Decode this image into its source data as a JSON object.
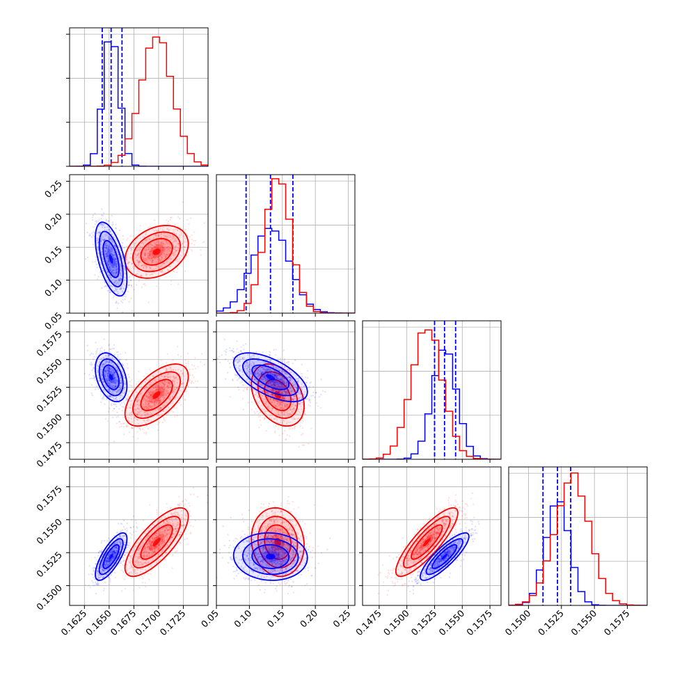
{
  "chart_data": {
    "type": "corner",
    "colors": {
      "series_a": "#0000ff",
      "series_b": "#ff0000",
      "grid": "#b0b0b0"
    },
    "parameters": [
      {
        "range": [
          0.161,
          0.175
        ],
        "ticks": [
          "0.1625",
          "0.1650",
          "0.1675",
          "0.1700",
          "0.1725"
        ],
        "tick_values": [
          0.1625,
          0.165,
          0.1675,
          0.17,
          0.1725
        ]
      },
      {
        "range": [
          0.05,
          0.26
        ],
        "ticks": [
          "0.05",
          "0.10",
          "0.15",
          "0.20",
          "0.25"
        ],
        "tick_values": [
          0.05,
          0.1,
          0.15,
          0.2,
          0.25
        ]
      },
      {
        "range": [
          0.146,
          0.1585
        ],
        "ticks": [
          "0.1475",
          "0.1500",
          "0.1525",
          "0.1550",
          "0.1575"
        ],
        "tick_values": [
          0.1475,
          0.15,
          0.1525,
          0.155,
          0.1575
        ]
      },
      {
        "range": [
          0.1485,
          0.159
        ],
        "ticks": [
          "0.1500",
          "0.1525",
          "0.1550",
          "0.1575"
        ],
        "tick_values": [
          0.15,
          0.1525,
          0.155,
          0.1575
        ]
      }
    ],
    "series": [
      {
        "color": "#0000ff",
        "means": [
          0.1652,
          0.132,
          0.1534,
          0.1522
        ],
        "sds": [
          0.0008,
          0.028,
          0.0011,
          0.0009
        ],
        "quantiles": [
          [
            0.1643,
            0.1652,
            0.1663
          ],
          [
            0.095,
            0.132,
            0.166
          ],
          [
            0.1525,
            0.1534,
            0.1544
          ],
          [
            0.1511,
            0.1522,
            0.1532
          ]
        ],
        "rho": [
          [
            1,
            -0.55,
            -0.35,
            0.75
          ],
          [
            -0.55,
            1,
            -0.6,
            -0.05
          ],
          [
            -0.35,
            -0.6,
            1,
            0.85
          ],
          [
            0.75,
            -0.05,
            0.85,
            1
          ]
        ],
        "hist_peak": [
          0.98,
          0.62,
          0.8,
          0.75
        ]
      },
      {
        "color": "#ff0000",
        "means": [
          0.1698,
          0.143,
          0.1518,
          0.1533
        ],
        "sds": [
          0.0016,
          0.02,
          0.0014,
          0.0013
        ],
        "quantiles": [],
        "rho": [
          [
            1,
            0.3,
            0.6,
            0.75
          ],
          [
            0.3,
            1,
            -0.35,
            -0.1
          ],
          [
            0.6,
            -0.35,
            1,
            0.85
          ],
          [
            0.75,
            -0.1,
            0.85,
            1
          ]
        ],
        "hist_peak": [
          0.96,
          0.95,
          0.97,
          0.93
        ]
      }
    ]
  }
}
